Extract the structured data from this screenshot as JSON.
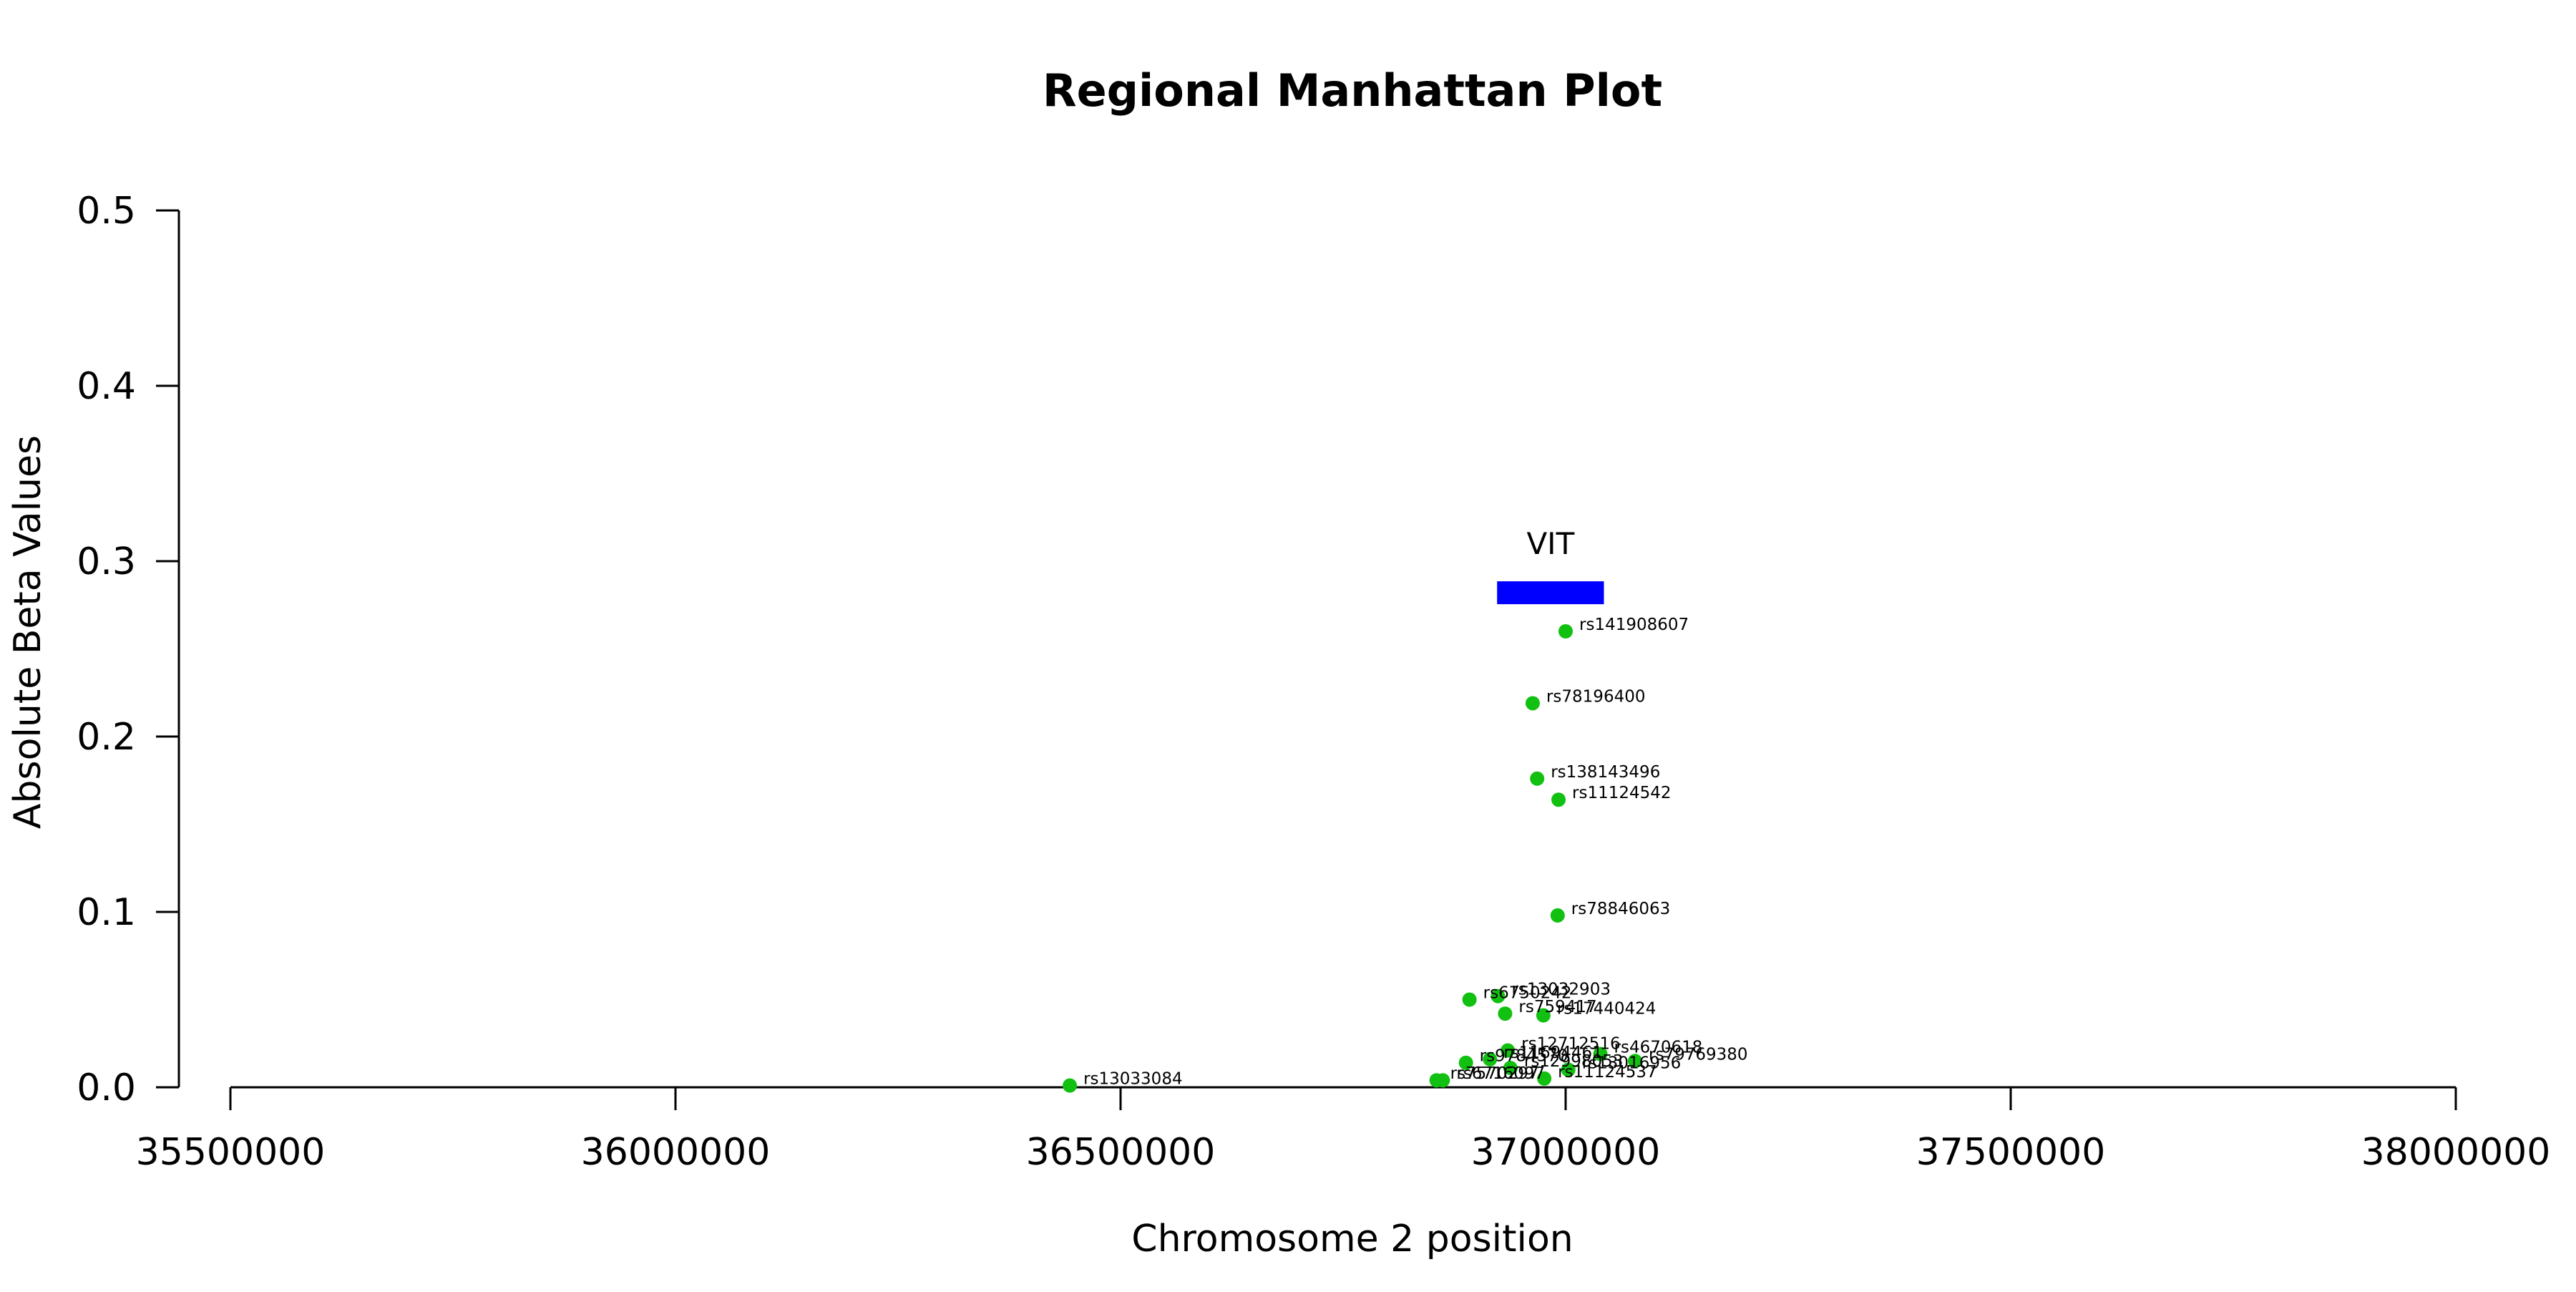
{
  "chart_data": {
    "type": "scatter",
    "title": "Regional Manhattan Plot",
    "xlabel": "Chromosome 2 position",
    "ylabel": "Absolute Beta Values",
    "xlim": [
      35500000,
      38000000
    ],
    "ylim": [
      0,
      0.5
    ],
    "x_ticks": [
      35500000,
      36000000,
      36500000,
      37000000,
      37500000,
      38000000
    ],
    "x_tick_labels": [
      "35500000",
      "36000000",
      "36500000",
      "37000000",
      "37500000",
      "38000000"
    ],
    "y_ticks": [
      0,
      0.1,
      0.2,
      0.3,
      0.4,
      0.5
    ],
    "y_tick_labels": [
      "0.0",
      "0.1",
      "0.2",
      "0.3",
      "0.4",
      "0.5"
    ],
    "grid": false,
    "point_color": "#11c011",
    "gene_color": "#0000ff",
    "gene": {
      "name": "VIT",
      "start": 36923000,
      "end": 37043000,
      "y": 0.282
    },
    "points": [
      {
        "x": 37000000,
        "y": 0.26,
        "label": "rs141908607"
      },
      {
        "x": 36963000,
        "y": 0.219,
        "label": "rs78196400"
      },
      {
        "x": 36968000,
        "y": 0.176,
        "label": "rs138143496"
      },
      {
        "x": 36992000,
        "y": 0.164,
        "label": "rs11124542"
      },
      {
        "x": 36991000,
        "y": 0.098,
        "label": "rs78846063"
      },
      {
        "x": 36892000,
        "y": 0.05,
        "label": "rs6750242"
      },
      {
        "x": 36924000,
        "y": 0.052,
        "label": "rs13032903"
      },
      {
        "x": 36932000,
        "y": 0.042,
        "label": "rs759417"
      },
      {
        "x": 36975000,
        "y": 0.041,
        "label": "rs17440424"
      },
      {
        "x": 36935000,
        "y": 0.021,
        "label": "rs12712516"
      },
      {
        "x": 37039000,
        "y": 0.019,
        "label": "rs4670618"
      },
      {
        "x": 37078000,
        "y": 0.015,
        "label": "rs79769380"
      },
      {
        "x": 36888000,
        "y": 0.014,
        "label": "rs9784570"
      },
      {
        "x": 36915000,
        "y": 0.016,
        "label": "rs11694461"
      },
      {
        "x": 36938000,
        "y": 0.011,
        "label": "rs12998053"
      },
      {
        "x": 37003000,
        "y": 0.01,
        "label": "rs13016956"
      },
      {
        "x": 36976000,
        "y": 0.005,
        "label": "rs11124537"
      },
      {
        "x": 36855000,
        "y": 0.004,
        "label": "rs7570297"
      },
      {
        "x": 36862000,
        "y": 0.004,
        "label": "rs6716097"
      },
      {
        "x": 36443000,
        "y": 0.001,
        "label": "rs13033084"
      }
    ]
  }
}
